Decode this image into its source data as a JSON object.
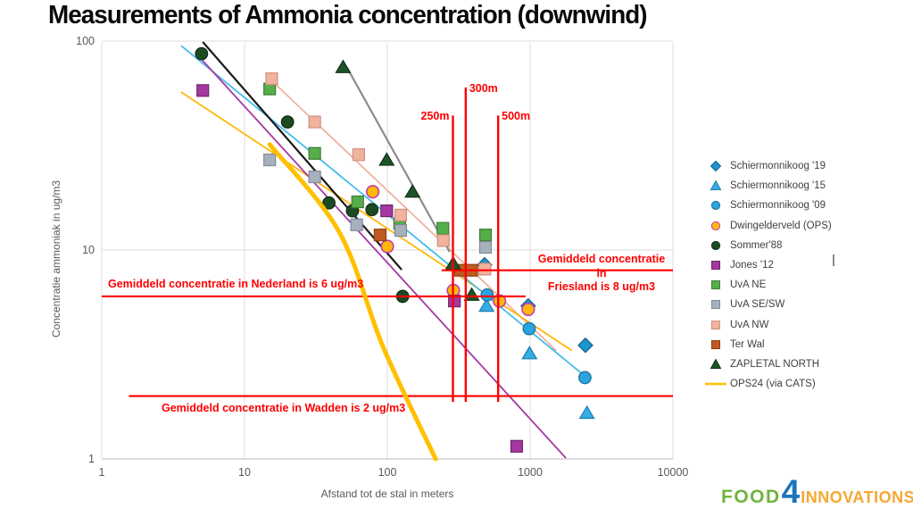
{
  "title": "Measurements of Ammonia concentration (downwind)",
  "chart_data": {
    "type": "scatter",
    "x_axis": {
      "label": "Afstand tot de stal in meters",
      "scale": "log",
      "ticks": [
        1,
        10,
        100,
        1000,
        10000
      ],
      "range": [
        1,
        10000
      ]
    },
    "y_axis": {
      "label": "Concentratie ammoniak in ug/m3",
      "scale": "log",
      "ticks": [
        1,
        10,
        100
      ],
      "range": [
        1,
        100
      ]
    },
    "grid": true,
    "legend_position": "right",
    "series": [
      {
        "name": "Schiermonnikoog '19",
        "marker": "diamond",
        "fill": "#1d94ce",
        "stroke": "#15618c",
        "points": [
          [
            480,
            8.5
          ],
          [
            970,
            5.4
          ],
          [
            2440,
            3.5
          ]
        ]
      },
      {
        "name": "Schiermonnikoog '15",
        "marker": "triangle",
        "fill": "#35ace4",
        "stroke": "#1d7fae",
        "points": [
          [
            495,
            5.4
          ],
          [
            990,
            3.2
          ],
          [
            2500,
            1.66
          ]
        ]
      },
      {
        "name": "Schiermonnikoog '09",
        "marker": "circle",
        "fill": "#2ba3de",
        "stroke": "#1a6e9a",
        "points": [
          [
            500,
            6.1
          ],
          [
            985,
            4.2
          ],
          [
            2420,
            2.45
          ]
        ]
      },
      {
        "name": "Dwingelderveld (OPS)",
        "marker": "circle",
        "fill": "#ffb80a",
        "stroke": "#c23cb0",
        "points": [
          [
            79,
            19
          ],
          [
            100,
            10.4
          ],
          [
            290,
            6.4
          ],
          [
            610,
            5.7
          ],
          [
            970,
            5.2
          ]
        ]
      },
      {
        "name": "Sommer'88",
        "marker": "circle",
        "fill": "#1c4a22",
        "stroke": "#102d14",
        "points": [
          [
            5,
            87
          ],
          [
            20,
            41
          ],
          [
            39,
            16.8
          ],
          [
            57,
            15.4
          ],
          [
            78,
            15.6
          ],
          [
            128,
            6.0
          ]
        ]
      },
      {
        "name": "Jones '12",
        "marker": "square",
        "fill": "#a438a0",
        "stroke": "#6e256c",
        "points": [
          [
            5.1,
            58
          ],
          [
            99,
            15.4
          ],
          [
            295,
            5.7
          ],
          [
            805,
            1.15
          ]
        ]
      },
      {
        "name": "UvA NE",
        "marker": "square",
        "fill": "#56ae4b",
        "stroke": "#3a7f34",
        "points": [
          [
            15,
            59
          ],
          [
            31,
            29
          ],
          [
            62,
            17
          ],
          [
            122,
            13.4
          ],
          [
            245,
            12.7
          ],
          [
            487,
            11.8
          ]
        ]
      },
      {
        "name": "UvA SE/SW",
        "marker": "square",
        "fill": "#a7b1bd",
        "stroke": "#7f8b99",
        "points": [
          [
            15,
            27
          ],
          [
            31,
            22.4
          ],
          [
            61,
            13.2
          ],
          [
            124,
            12.4
          ],
          [
            487,
            10.3
          ]
        ]
      },
      {
        "name": "UvA NW",
        "marker": "square",
        "fill": "#f1b29e",
        "stroke": "#d09080",
        "points": [
          [
            15.5,
            66
          ],
          [
            31,
            41
          ],
          [
            63,
            28.6
          ],
          [
            124,
            14.7
          ],
          [
            247,
            11.1
          ],
          [
            482,
            8.1
          ]
        ]
      },
      {
        "name": "Ter Wal",
        "marker": "square",
        "fill": "#be5a21",
        "stroke": "#8f3f12",
        "points": [
          [
            89,
            11.8
          ],
          [
            325,
            8.0
          ],
          [
            390,
            8.0
          ]
        ]
      },
      {
        "name": "ZAPLETAL NORTH",
        "marker": "triangle",
        "fill": "#1e5429",
        "stroke": "#113318",
        "points": [
          [
            49,
            75
          ],
          [
            99,
            27
          ],
          [
            150,
            19
          ],
          [
            289,
            8.6
          ],
          [
            390,
            6.1
          ]
        ]
      },
      {
        "name": "OPS24 (via CATS)",
        "marker": "line",
        "fill": "#ffc000",
        "stroke": "#ffc000",
        "curve": [
          [
            15,
            32
          ],
          [
            46,
            12.2
          ],
          [
            94,
            3.4
          ],
          [
            218,
            1.0
          ]
        ]
      }
    ],
    "trend_lines": [
      {
        "series": "UvA NW trend",
        "color": "#f1b29e",
        "width": 1.8,
        "points": [
          [
            15,
            66
          ],
          [
            1525,
            3.3
          ]
        ]
      },
      {
        "series": "Dwingelderveld trend",
        "color": "#ffb70a",
        "width": 1.8,
        "points": [
          [
            3.6,
            57
          ],
          [
            1960,
            3.3
          ]
        ]
      },
      {
        "series": "Schiermonnikoog trend",
        "color": "#45bcee",
        "width": 1.8,
        "points": [
          [
            3.6,
            95
          ],
          [
            2590,
            2.4
          ]
        ]
      },
      {
        "series": "Jones trend",
        "color": "#a637a2",
        "width": 1.8,
        "points": [
          [
            4.9,
            83
          ],
          [
            1780,
            1.01
          ]
        ]
      },
      {
        "series": "ZAPLETAL trend",
        "color": "#8c8c8c",
        "width": 2.2,
        "points": [
          [
            52,
            75
          ],
          [
            273,
            9.8
          ]
        ]
      },
      {
        "series": "Sommer trend",
        "color": "#1a1a1a",
        "width": 2.2,
        "points": [
          [
            5.1,
            99
          ],
          [
            126,
            8.05
          ]
        ]
      }
    ],
    "red_annotations": {
      "color": "#ff0000",
      "vertical_lines": [
        {
          "label": "250m",
          "x_m": 288,
          "top_ugm3": 44,
          "bottom_ugm3": 1.93,
          "label_side": "left"
        },
        {
          "label": "300m",
          "x_m": 354,
          "top_ugm3": 60,
          "bottom_ugm3": 1.93,
          "label_side": "right"
        },
        {
          "label": "500m",
          "x_m": 597,
          "top_ugm3": 44,
          "bottom_ugm3": 1.93,
          "label_side": "right"
        }
      ],
      "horizontal_lines": [
        {
          "id": "nederland",
          "value_ugm3": 6,
          "from_m": 1,
          "to_m": 930,
          "text": "Gemiddeld concentratie in Nederland is 6 ug/m3"
        },
        {
          "id": "friesland",
          "value_ugm3": 8,
          "from_m": 240,
          "to_m": 10000,
          "text_line1": "Gemiddeld concentratie in",
          "text_line2": "Friesland  is 8 ug/m3"
        },
        {
          "id": "wadden",
          "value_ugm3": 2,
          "from_m": 1.55,
          "to_m": 10000,
          "text": "Gemiddeld concentratie in Wadden  is 2 ug/m3"
        }
      ]
    }
  },
  "logo": {
    "food": "FOOD",
    "four": "4",
    "innovations": "INNOVATIONS",
    "food_color": "#6fb43f",
    "four_color": "#1b75bc",
    "innovations_color": "#f5a833"
  }
}
